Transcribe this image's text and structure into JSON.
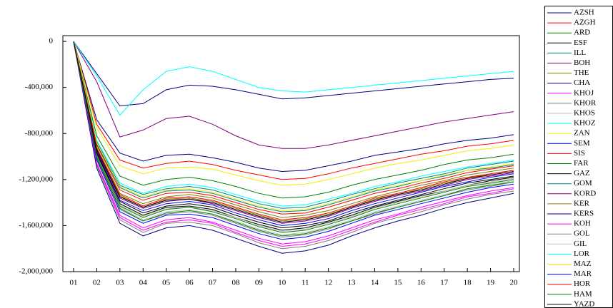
{
  "chart_data": {
    "type": "line",
    "categories": [
      "01",
      "02",
      "03",
      "04",
      "05",
      "06",
      "07",
      "08",
      "09",
      "10",
      "11",
      "12",
      "13",
      "14",
      "15",
      "16",
      "17",
      "18",
      "19",
      "20"
    ],
    "ylim": [
      -2000000,
      50000
    ],
    "yticks": [
      {
        "value": -2000000,
        "label": "-2,000,000"
      },
      {
        "value": -1600000,
        "label": "-1,600,000"
      },
      {
        "value": -1200000,
        "label": "-1,200,000"
      },
      {
        "value": -800000,
        "label": "-800,000"
      },
      {
        "value": -400000,
        "label": "-400,000"
      },
      0
    ],
    "legend_position": "right",
    "series": [
      {
        "name": "AZSH",
        "color": "#000080",
        "values": [
          0,
          -680000,
          -970000,
          -1040000,
          -990000,
          -980000,
          -1010000,
          -1050000,
          -1100000,
          -1130000,
          -1120000,
          -1080000,
          -1040000,
          -990000,
          -960000,
          -930000,
          -890000,
          -860000,
          -840000,
          -810000
        ]
      },
      {
        "name": "AZGH",
        "color": "#ff0000",
        "values": [
          0,
          -720000,
          -1030000,
          -1100000,
          -1060000,
          -1040000,
          -1070000,
          -1120000,
          -1160000,
          -1200000,
          -1190000,
          -1150000,
          -1100000,
          -1060000,
          -1020000,
          -980000,
          -950000,
          -910000,
          -890000,
          -860000
        ]
      },
      {
        "name": "ARD",
        "color": "#008000",
        "values": [
          0,
          -820000,
          -1170000,
          -1250000,
          -1200000,
          -1180000,
          -1210000,
          -1260000,
          -1320000,
          -1360000,
          -1350000,
          -1310000,
          -1250000,
          -1200000,
          -1160000,
          -1120000,
          -1070000,
          -1030000,
          -1010000,
          -980000
        ]
      },
      {
        "name": "ESF",
        "color": "#000000",
        "values": [
          0,
          -980000,
          -1410000,
          -1510000,
          -1440000,
          -1430000,
          -1460000,
          -1530000,
          -1590000,
          -1640000,
          -1620000,
          -1570000,
          -1510000,
          -1440000,
          -1390000,
          -1340000,
          -1300000,
          -1250000,
          -1210000,
          -1180000
        ]
      },
      {
        "name": "ILL",
        "color": "#008080",
        "values": [
          0,
          -870000,
          -1250000,
          -1330000,
          -1280000,
          -1260000,
          -1290000,
          -1350000,
          -1410000,
          -1450000,
          -1440000,
          -1390000,
          -1330000,
          -1280000,
          -1230000,
          -1190000,
          -1150000,
          -1100000,
          -1070000,
          -1040000
        ]
      },
      {
        "name": "BOH",
        "color": "#800080",
        "values": [
          0,
          -350000,
          -830000,
          -770000,
          -670000,
          -650000,
          -720000,
          -820000,
          -900000,
          -930000,
          -930000,
          -900000,
          -860000,
          -820000,
          -780000,
          -740000,
          -700000,
          -670000,
          -640000,
          -610000
        ]
      },
      {
        "name": "THE",
        "color": "#808000",
        "values": [
          0,
          -940000,
          -1340000,
          -1440000,
          -1370000,
          -1360000,
          -1390000,
          -1450000,
          -1510000,
          -1560000,
          -1540000,
          -1500000,
          -1440000,
          -1370000,
          -1330000,
          -1280000,
          -1230000,
          -1190000,
          -1150000,
          -1120000
        ]
      },
      {
        "name": "CHA",
        "color": "#000080",
        "values": [
          0,
          -280000,
          -560000,
          -540000,
          -420000,
          -380000,
          -390000,
          -420000,
          -460000,
          -500000,
          -490000,
          -470000,
          -450000,
          -430000,
          -410000,
          -390000,
          -370000,
          -350000,
          -330000,
          -320000
        ]
      },
      {
        "name": "KHOJ",
        "color": "#ff00ff",
        "values": [
          0,
          -1070000,
          -1530000,
          -1640000,
          -1570000,
          -1550000,
          -1580000,
          -1660000,
          -1730000,
          -1780000,
          -1760000,
          -1710000,
          -1640000,
          -1570000,
          -1510000,
          -1460000,
          -1410000,
          -1350000,
          -1320000,
          -1280000
        ]
      },
      {
        "name": "KHOR",
        "color": "#808080",
        "values": [
          0,
          -1080000,
          -1550000,
          -1660000,
          -1580000,
          -1570000,
          -1600000,
          -1670000,
          -1750000,
          -1800000,
          -1780000,
          -1730000,
          -1660000,
          -1580000,
          -1530000,
          -1480000,
          -1420000,
          -1370000,
          -1330000,
          -1300000
        ]
      },
      {
        "name": "KHOS",
        "color": "#c0c0c0",
        "values": [
          0,
          -990000,
          -1420000,
          -1520000,
          -1450000,
          -1440000,
          -1470000,
          -1530000,
          -1600000,
          -1650000,
          -1630000,
          -1580000,
          -1520000,
          -1450000,
          -1400000,
          -1350000,
          -1300000,
          -1250000,
          -1220000,
          -1190000
        ]
      },
      {
        "name": "KHOZ",
        "color": "#00ffff",
        "values": [
          0,
          -300000,
          -640000,
          -420000,
          -260000,
          -220000,
          -260000,
          -330000,
          -400000,
          -430000,
          -440000,
          -420000,
          -400000,
          -380000,
          -360000,
          -340000,
          -320000,
          -300000,
          -280000,
          -260000
        ]
      },
      {
        "name": "ZAN",
        "color": "#f0f000",
        "values": [
          0,
          -750000,
          -1080000,
          -1150000,
          -1100000,
          -1090000,
          -1110000,
          -1160000,
          -1210000,
          -1250000,
          -1240000,
          -1200000,
          -1150000,
          -1100000,
          -1060000,
          -1030000,
          -990000,
          -950000,
          -930000,
          -900000
        ]
      },
      {
        "name": "SEM",
        "color": "#0000ff",
        "values": [
          0,
          -960000,
          -1380000,
          -1470000,
          -1410000,
          -1390000,
          -1420000,
          -1490000,
          -1550000,
          -1600000,
          -1580000,
          -1540000,
          -1470000,
          -1410000,
          -1360000,
          -1310000,
          -1260000,
          -1220000,
          -1180000,
          -1150000
        ]
      },
      {
        "name": "SIS",
        "color": "#ff0000",
        "values": [
          0,
          -930000,
          -1330000,
          -1430000,
          -1360000,
          -1350000,
          -1380000,
          -1440000,
          -1500000,
          -1550000,
          -1530000,
          -1490000,
          -1430000,
          -1360000,
          -1320000,
          -1270000,
          -1220000,
          -1180000,
          -1150000,
          -1120000
        ]
      },
      {
        "name": "FAR",
        "color": "#008000",
        "values": [
          0,
          -1000000,
          -1430000,
          -1530000,
          -1460000,
          -1440000,
          -1480000,
          -1540000,
          -1610000,
          -1660000,
          -1640000,
          -1590000,
          -1530000,
          -1460000,
          -1410000,
          -1360000,
          -1310000,
          -1260000,
          -1230000,
          -1200000
        ]
      },
      {
        "name": "GAZ",
        "color": "#000000",
        "values": [
          0,
          -970000,
          -1390000,
          -1490000,
          -1430000,
          -1410000,
          -1440000,
          -1510000,
          -1570000,
          -1620000,
          -1600000,
          -1560000,
          -1490000,
          -1430000,
          -1380000,
          -1330000,
          -1280000,
          -1230000,
          -1200000,
          -1170000
        ]
      },
      {
        "name": "GOM",
        "color": "#008080",
        "values": [
          0,
          -890000,
          -1270000,
          -1360000,
          -1300000,
          -1290000,
          -1320000,
          -1380000,
          -1440000,
          -1480000,
          -1470000,
          -1420000,
          -1360000,
          -1300000,
          -1260000,
          -1210000,
          -1170000,
          -1120000,
          -1100000,
          -1070000
        ]
      },
      {
        "name": "KORD",
        "color": "#800080",
        "values": [
          0,
          -950000,
          -1360000,
          -1450000,
          -1390000,
          -1370000,
          -1410000,
          -1470000,
          -1530000,
          -1580000,
          -1560000,
          -1520000,
          -1450000,
          -1390000,
          -1340000,
          -1300000,
          -1250000,
          -1200000,
          -1170000,
          -1140000
        ]
      },
      {
        "name": "KER",
        "color": "#808000",
        "values": [
          0,
          -920000,
          -1320000,
          -1410000,
          -1350000,
          -1330000,
          -1360000,
          -1420000,
          -1480000,
          -1530000,
          -1510000,
          -1470000,
          -1410000,
          -1350000,
          -1300000,
          -1250000,
          -1210000,
          -1160000,
          -1130000,
          -1100000
        ]
      },
      {
        "name": "KERS",
        "color": "#000080",
        "values": [
          0,
          -1100000,
          -1580000,
          -1690000,
          -1620000,
          -1600000,
          -1640000,
          -1710000,
          -1780000,
          -1840000,
          -1820000,
          -1770000,
          -1690000,
          -1620000,
          -1560000,
          -1510000,
          -1450000,
          -1400000,
          -1360000,
          -1320000
        ]
      },
      {
        "name": "KOH",
        "color": "#ff00ff",
        "values": [
          0,
          -1060000,
          -1510000,
          -1620000,
          -1550000,
          -1530000,
          -1570000,
          -1640000,
          -1710000,
          -1760000,
          -1740000,
          -1690000,
          -1620000,
          -1550000,
          -1500000,
          -1440000,
          -1390000,
          -1340000,
          -1300000,
          -1270000
        ]
      },
      {
        "name": "GOL",
        "color": "#808080",
        "values": [
          0,
          -1020000,
          -1460000,
          -1560000,
          -1500000,
          -1480000,
          -1510000,
          -1580000,
          -1650000,
          -1700000,
          -1680000,
          -1630000,
          -1560000,
          -1500000,
          -1440000,
          -1390000,
          -1340000,
          -1290000,
          -1260000,
          -1220000
        ]
      },
      {
        "name": "GIL",
        "color": "#c0c0c0",
        "values": [
          0,
          -1010000,
          -1440000,
          -1550000,
          -1480000,
          -1460000,
          -1500000,
          -1560000,
          -1630000,
          -1680000,
          -1660000,
          -1610000,
          -1550000,
          -1480000,
          -1430000,
          -1380000,
          -1330000,
          -1280000,
          -1240000,
          -1210000
        ]
      },
      {
        "name": "LOR",
        "color": "#00ffff",
        "values": [
          0,
          -860000,
          -1230000,
          -1320000,
          -1260000,
          -1240000,
          -1270000,
          -1330000,
          -1390000,
          -1430000,
          -1420000,
          -1370000,
          -1320000,
          -1260000,
          -1220000,
          -1170000,
          -1130000,
          -1090000,
          -1060000,
          -1030000
        ]
      },
      {
        "name": "MAZ",
        "color": "#f0f000",
        "values": [
          0,
          -880000,
          -1260000,
          -1350000,
          -1290000,
          -1280000,
          -1310000,
          -1370000,
          -1430000,
          -1470000,
          -1460000,
          -1410000,
          -1350000,
          -1290000,
          -1250000,
          -1210000,
          -1160000,
          -1120000,
          -1090000,
          -1060000
        ]
      },
      {
        "name": "MAR",
        "color": "#0000ff",
        "values": [
          0,
          -1030000,
          -1480000,
          -1580000,
          -1510000,
          -1500000,
          -1530000,
          -1600000,
          -1670000,
          -1720000,
          -1700000,
          -1650000,
          -1580000,
          -1510000,
          -1460000,
          -1410000,
          -1360000,
          -1310000,
          -1270000,
          -1240000
        ]
      },
      {
        "name": "HOR",
        "color": "#ff0000",
        "values": [
          0,
          -900000,
          -1290000,
          -1380000,
          -1320000,
          -1310000,
          -1340000,
          -1400000,
          -1460000,
          -1500000,
          -1490000,
          -1440000,
          -1380000,
          -1320000,
          -1280000,
          -1230000,
          -1190000,
          -1140000,
          -1110000,
          -1080000
        ]
      },
      {
        "name": "HAM",
        "color": "#008000",
        "values": [
          0,
          -1010000,
          -1450000,
          -1560000,
          -1490000,
          -1470000,
          -1500000,
          -1570000,
          -1640000,
          -1690000,
          -1670000,
          -1620000,
          -1560000,
          -1490000,
          -1440000,
          -1390000,
          -1340000,
          -1280000,
          -1250000,
          -1220000
        ]
      },
      {
        "name": "YAZD",
        "color": "#000000",
        "values": [
          0,
          -940000,
          -1350000,
          -1440000,
          -1380000,
          -1370000,
          -1400000,
          -1460000,
          -1520000,
          -1570000,
          -1550000,
          -1510000,
          -1440000,
          -1380000,
          -1330000,
          -1290000,
          -1240000,
          -1190000,
          -1160000,
          -1130000
        ]
      }
    ]
  }
}
